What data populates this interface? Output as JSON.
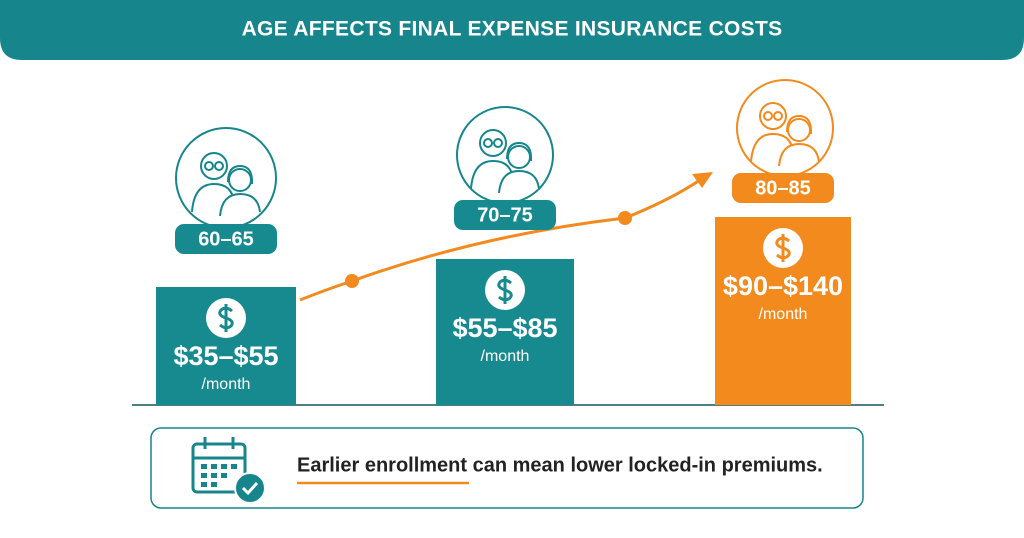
{
  "header": {
    "title": "AGE AFFECTS FINAL EXPENSE INSURANCE COSTS"
  },
  "tiers": [
    {
      "age": "60–65",
      "price": "$35–$55",
      "unit": "/month"
    },
    {
      "age": "70–75",
      "price": "$55–$85",
      "unit": "/month"
    },
    {
      "age": "80–85",
      "price": "$90–$140",
      "unit": "/month"
    }
  ],
  "footer": {
    "note": "Earlier enrollment can mean lower locked-in premiums."
  }
}
